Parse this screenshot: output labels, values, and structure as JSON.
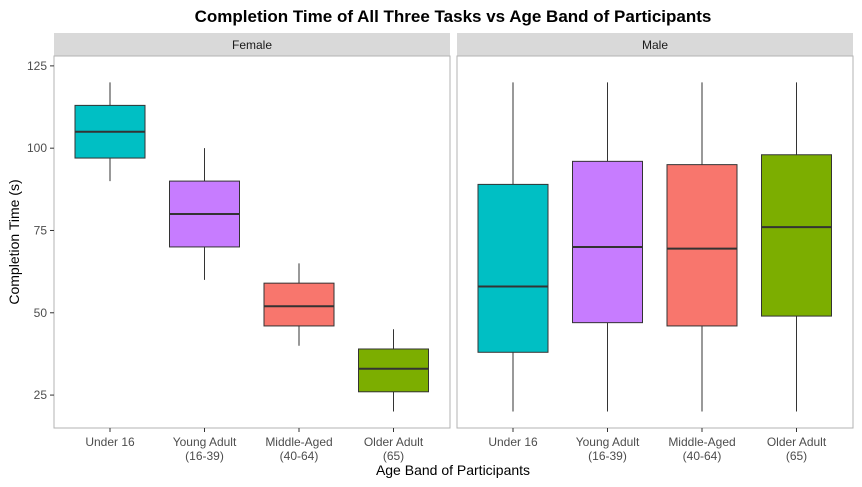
{
  "chart_data": {
    "type": "boxplot",
    "title": "Completion Time of All Three Tasks vs Age Band of Participants",
    "xlabel": "Age Band of Participants",
    "ylabel": "Completion Time (s)",
    "ylim": [
      15,
      128
    ],
    "yticks": [
      25,
      50,
      75,
      100,
      125
    ],
    "grid": false,
    "facets": [
      "Female",
      "Male"
    ],
    "categories": [
      {
        "line1": "Under 16",
        "line2": ""
      },
      {
        "line1": "Young Adult",
        "line2": "(16-39)"
      },
      {
        "line1": "Middle-Aged",
        "line2": "(40-64)"
      },
      {
        "line1": "Older Adult",
        "line2": "(65)"
      }
    ],
    "colors": [
      "#00BFC4",
      "#C77CFF",
      "#F8766D",
      "#7CAE00"
    ],
    "panels": [
      {
        "facet": "Female",
        "boxes": [
          {
            "category": "Under 16",
            "min": 90,
            "q1": 97,
            "median": 105,
            "q3": 113,
            "max": 120
          },
          {
            "category": "Young Adult (16-39)",
            "min": 60,
            "q1": 70,
            "median": 80,
            "q3": 90,
            "max": 100
          },
          {
            "category": "Middle-Aged (40-64)",
            "min": 40,
            "q1": 46,
            "median": 52,
            "q3": 59,
            "max": 65
          },
          {
            "category": "Older Adult (65)",
            "min": 20,
            "q1": 26,
            "median": 33,
            "q3": 39,
            "max": 45
          }
        ]
      },
      {
        "facet": "Male",
        "boxes": [
          {
            "category": "Under 16",
            "min": 20,
            "q1": 38,
            "median": 58,
            "q3": 89,
            "max": 120
          },
          {
            "category": "Young Adult (16-39)",
            "min": 20,
            "q1": 47,
            "median": 70,
            "q3": 96,
            "max": 120
          },
          {
            "category": "Middle-Aged (40-64)",
            "min": 20,
            "q1": 46,
            "median": 69.5,
            "q3": 95,
            "max": 120
          },
          {
            "category": "Older Adult (65)",
            "min": 20,
            "q1": 49,
            "median": 76,
            "q3": 98,
            "max": 120
          }
        ]
      }
    ]
  }
}
